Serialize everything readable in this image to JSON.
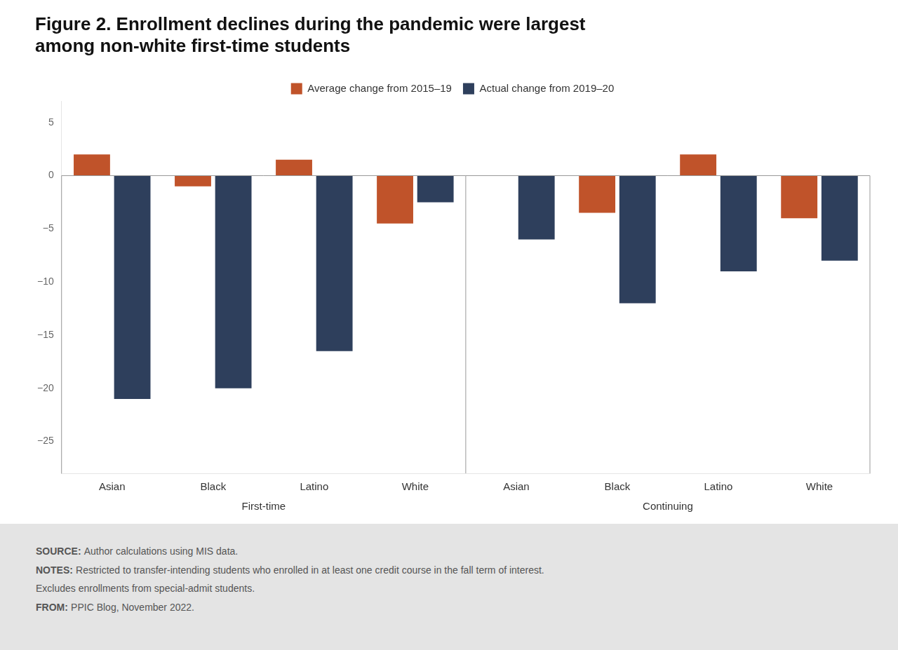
{
  "chart_data": {
    "type": "bar",
    "title": [
      "Figure 2. Enrollment declines during the pandemic were largest",
      "among non-white first-time students"
    ],
    "categories": [
      "Asian",
      "Black",
      "Latino",
      "White",
      "Asian",
      "Black",
      "Latino",
      "White"
    ],
    "groups": [
      "First-time",
      "Continuing"
    ],
    "series": [
      {
        "name": "Average change from 2015–19",
        "color": "#C0532A",
        "values": [
          2.0,
          -1.0,
          1.5,
          -4.5,
          0.0,
          -3.5,
          2.0,
          -4.0
        ]
      },
      {
        "name": "Actual change from 2019–20",
        "color": "#2E3F5C",
        "values": [
          -21.0,
          -20.0,
          -16.5,
          -2.5,
          -6.0,
          -12.0,
          -9.0,
          -8.0
        ]
      }
    ],
    "ylim": [
      -28,
      7
    ],
    "yticks": [
      5,
      0,
      {
        "value": -5,
        "label": "−5"
      },
      {
        "value": -10,
        "label": "−10"
      },
      {
        "value": -15,
        "label": "−15"
      },
      {
        "value": -20,
        "label": "−20"
      },
      {
        "value": -25,
        "label": "−25"
      }
    ],
    "grid": false,
    "legend": "top",
    "annotations": [
      {
        "label": "SOURCE:",
        "text": "Author calculations using MIS data."
      },
      {
        "label": "NOTES:",
        "text": "Restricted to transfer-intending students who enrolled in at least one credit course in the fall term of interest."
      },
      {
        "text": "Excludes enrollments from special-admit students."
      },
      {
        "label": "FROM:",
        "text": "PPIC Blog, November 2022."
      }
    ]
  }
}
